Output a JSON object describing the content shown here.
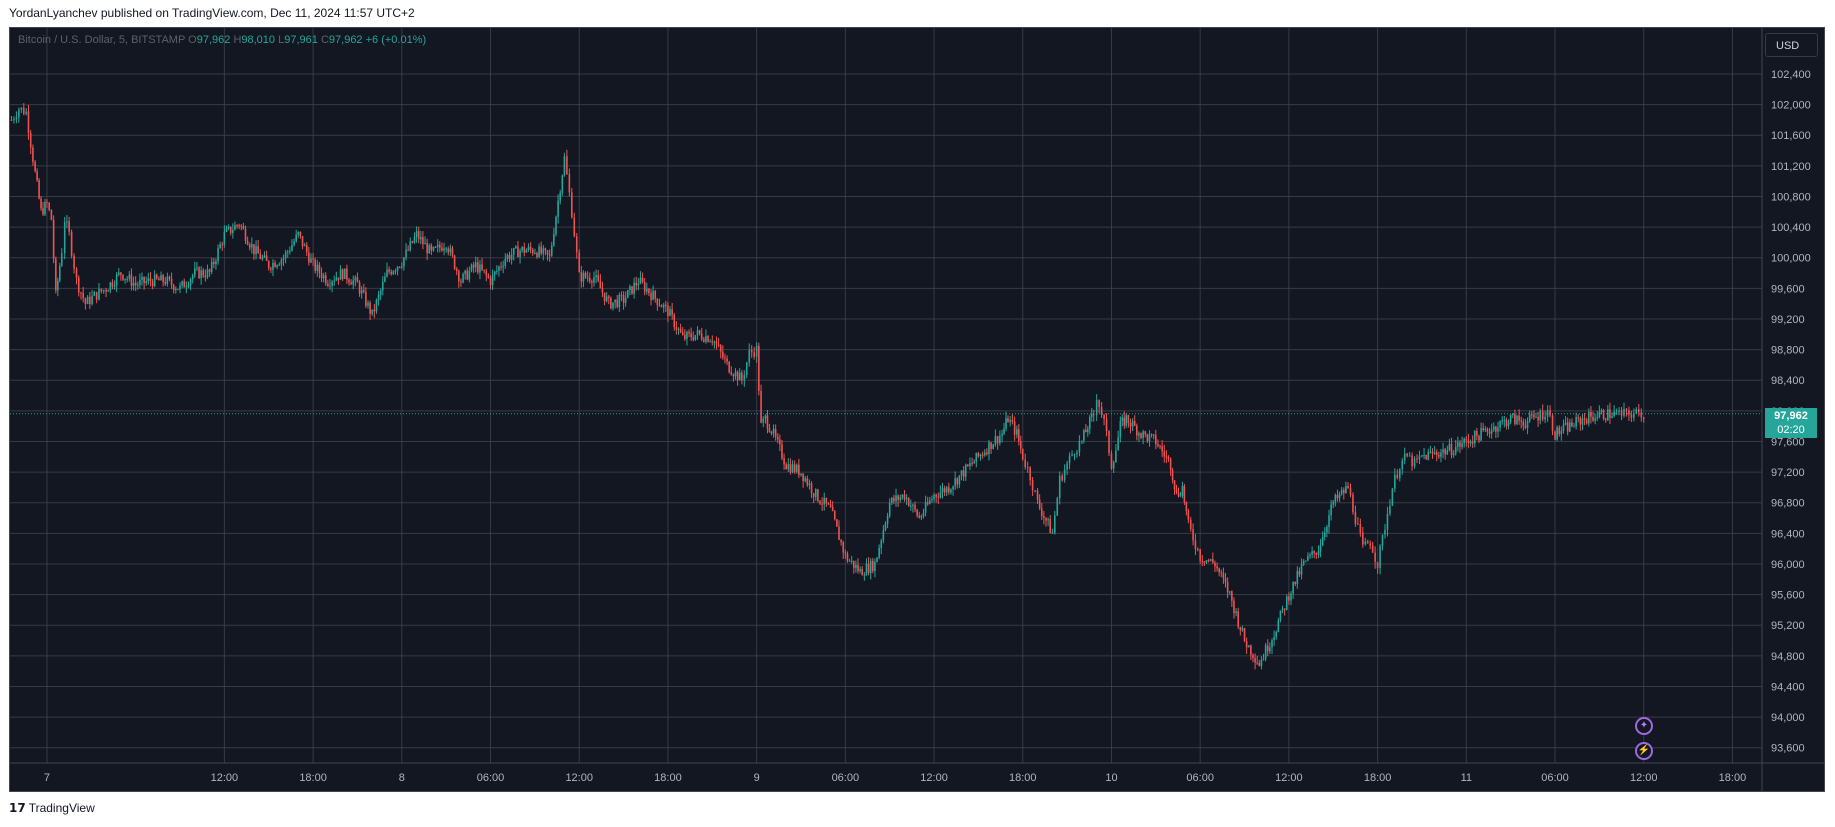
{
  "publisher": "YordanLyanchev published on TradingView.com, Dec 11, 2024 11:57 UTC+2",
  "footer_brand": "TradingView",
  "legend": {
    "symbol": "Bitcoin / U.S. Dollar, 5, BITSTAMP",
    "o_label": "O",
    "o_value": "97,962",
    "h_label": "H",
    "h_value": "98,010",
    "l_label": "L",
    "l_value": "97,961",
    "c_label": "C",
    "c_value": "97,962",
    "change": "+6 (+0.01%)"
  },
  "currency_button": "USD",
  "last_price": {
    "value": "97,962",
    "countdown": "02:20"
  },
  "icons": [
    "sparkle-icon",
    "lightning-icon"
  ],
  "colors": {
    "background": "#131722",
    "grid": "#434651",
    "up": "#26a69a",
    "down": "#ef5350",
    "axis_text": "#b2b5be"
  },
  "chart_data": {
    "type": "line",
    "style": "candlestick",
    "title": "Bitcoin / U.S. Dollar, 5, BITSTAMP",
    "xlabel": "",
    "ylabel": "",
    "ylim": [
      93400,
      103000
    ],
    "grid": true,
    "y_ticks": [
      "93,600",
      "94,000",
      "94,400",
      "94,800",
      "95,200",
      "95,600",
      "96,000",
      "96,400",
      "96,800",
      "97,200",
      "97,600",
      "98,000",
      "98,400",
      "98,800",
      "99,200",
      "99,600",
      "100,000",
      "100,400",
      "100,800",
      "101,200",
      "101,600",
      "102,000",
      "102,400"
    ],
    "x_ticks": [
      {
        "label": "7",
        "t": 24
      },
      {
        "label": "12:00",
        "t": 36
      },
      {
        "label": "18:00",
        "t": 42
      },
      {
        "label": "8",
        "t": 48
      },
      {
        "label": "06:00",
        "t": 54
      },
      {
        "label": "12:00",
        "t": 60
      },
      {
        "label": "18:00",
        "t": 66
      },
      {
        "label": "9",
        "t": 72
      },
      {
        "label": "06:00",
        "t": 78
      },
      {
        "label": "12:00",
        "t": 84
      },
      {
        "label": "18:00",
        "t": 90
      },
      {
        "label": "10",
        "t": 96
      },
      {
        "label": "06:00",
        "t": 102
      },
      {
        "label": "12:00",
        "t": 108
      },
      {
        "label": "18:00",
        "t": 114
      },
      {
        "label": "11",
        "t": 120
      },
      {
        "label": "06:00",
        "t": 126
      },
      {
        "label": "12:00",
        "t": 132
      },
      {
        "label": "18:00",
        "t": 138
      }
    ],
    "xlim": [
      21.5,
      140
    ],
    "series": [
      {
        "t": [
          21.6,
          22.1,
          22.6,
          23.2,
          23.6,
          24.0,
          24.3,
          24.6,
          25.0,
          25.2,
          25.5,
          26.0,
          26.6,
          27.2,
          28.0,
          29.0,
          30.0,
          31.0,
          32.0,
          33.0,
          34.0,
          35.0,
          36.0,
          37.0,
          38.0,
          39.0,
          40.0,
          41.0,
          42.0,
          43.0,
          44.0,
          45.0,
          46.0,
          47.0,
          48.0,
          49.0,
          50.0,
          51.0,
          52.0,
          53.0,
          54.0,
          55.0,
          56.0,
          57.0,
          58.0,
          59.0,
          59.5,
          60.0,
          61.0,
          62.0,
          63.0,
          64.0,
          65.0,
          66.0,
          67.0,
          68.0,
          69.0,
          70.0,
          71.0,
          71.5,
          72.0,
          72.3,
          72.6,
          73.0,
          74.0,
          75.0,
          76.0,
          77.0,
          78.0,
          79.0,
          80.0,
          81.0,
          82.0,
          83.0,
          84.0,
          85.0,
          86.0,
          87.0,
          88.0,
          88.6,
          89.0,
          89.3,
          89.6,
          90.0,
          90.5,
          91.0,
          92.0,
          92.5,
          93.0,
          93.5,
          94.0,
          94.4,
          94.8,
          95.0,
          95.5,
          96.0,
          96.3,
          96.6,
          97.0,
          98.0,
          99.0,
          100.0,
          100.4,
          100.8,
          101.2,
          102.0,
          103.0,
          104.0,
          105.0,
          106.0,
          107.0,
          108.0,
          109.0,
          110.0,
          111.0,
          112.0,
          112.5,
          113.0,
          113.5,
          114.0,
          114.5,
          115.0,
          115.5,
          116.0,
          116.5,
          117.0,
          118.0,
          119.0,
          120.0,
          121.0,
          122.0,
          123.0,
          124.0,
          125.0,
          125.5,
          126.0,
          127.0,
          128.0,
          129.0,
          130.0,
          130.5,
          131.0,
          131.5,
          132.0
        ],
        "values": [
          101800,
          101950,
          101900,
          101100,
          100600,
          100700,
          100500,
          99500,
          100100,
          100500,
          100300,
          99700,
          99400,
          99500,
          99600,
          99800,
          99650,
          99700,
          99700,
          99600,
          99800,
          99800,
          100300,
          100450,
          100100,
          99900,
          100000,
          100300,
          99900,
          99700,
          99800,
          99650,
          99250,
          99800,
          99950,
          100300,
          100050,
          100200,
          99700,
          99900,
          99700,
          100000,
          100100,
          100100,
          100000,
          101300,
          100600,
          99750,
          99750,
          99400,
          99450,
          99700,
          99500,
          99300,
          98950,
          99000,
          98950,
          98600,
          98400,
          98750,
          98800,
          97800,
          97900,
          97750,
          97300,
          97200,
          96900,
          96700,
          96100,
          95900,
          96000,
          96800,
          96900,
          96600,
          96900,
          97000,
          97200,
          97400,
          97600,
          97700,
          97900,
          97800,
          97700,
          97400,
          97150,
          96800,
          96400,
          97100,
          97300,
          97500,
          97600,
          97800,
          97950,
          98200,
          97850,
          97300,
          97500,
          97800,
          97900,
          97700,
          97600,
          97300,
          96900,
          97000,
          96500,
          96100,
          96000,
          95600,
          95000,
          94700,
          95100,
          95600,
          96000,
          96200,
          96800,
          97000,
          96600,
          96200,
          96300,
          96000,
          96500,
          97000,
          97300,
          97400,
          97300,
          97400,
          97450,
          97500,
          97600,
          97700,
          97800,
          97900,
          97850,
          97950,
          98000,
          97700,
          97800,
          97900,
          97950,
          97962,
          97950,
          97962,
          97962,
          97962
        ]
      }
    ]
  }
}
